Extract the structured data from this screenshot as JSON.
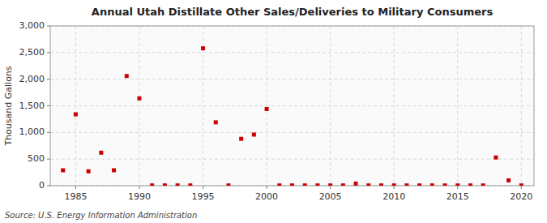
{
  "chart_data": {
    "type": "scatter",
    "title": "Annual Utah Distillate Other Sales/Deliveries to Military Consumers",
    "y_label": "Thousand Gallons",
    "annotations": [
      "Source: U.S. Energy Information Administration"
    ],
    "x": [
      1984,
      1985,
      1986,
      1987,
      1988,
      1989,
      1990,
      1991,
      1992,
      1993,
      1994,
      1995,
      1996,
      1997,
      1998,
      1999,
      2000,
      2001,
      2002,
      2003,
      2004,
      2005,
      2006,
      2007,
      2008,
      2009,
      2010,
      2011,
      2012,
      2013,
      2014,
      2015,
      2016,
      2017,
      2018,
      2019,
      2020
    ],
    "values": [
      290,
      1340,
      270,
      620,
      290,
      2060,
      1640,
      5,
      5,
      5,
      5,
      2580,
      1190,
      5,
      880,
      960,
      1440,
      5,
      5,
      5,
      5,
      5,
      5,
      40,
      5,
      5,
      5,
      5,
      5,
      5,
      5,
      5,
      5,
      5,
      530,
      100,
      5
    ],
    "color": "#cc0000",
    "marker": "square",
    "grid": true,
    "xlim": [
      1983,
      2021
    ],
    "ylim": [
      0,
      3000
    ],
    "xticks": [
      1985,
      1990,
      1995,
      2000,
      2005,
      2010,
      2015,
      2020
    ],
    "yticks": [
      0,
      500,
      {
        "value": 1000,
        "label": "1,000"
      },
      {
        "value": 1500,
        "label": "1,500"
      },
      {
        "value": 2000,
        "label": "2,000"
      },
      {
        "value": 2500,
        "label": "2,500"
      },
      {
        "value": 3000,
        "label": "3,000"
      }
    ]
  }
}
